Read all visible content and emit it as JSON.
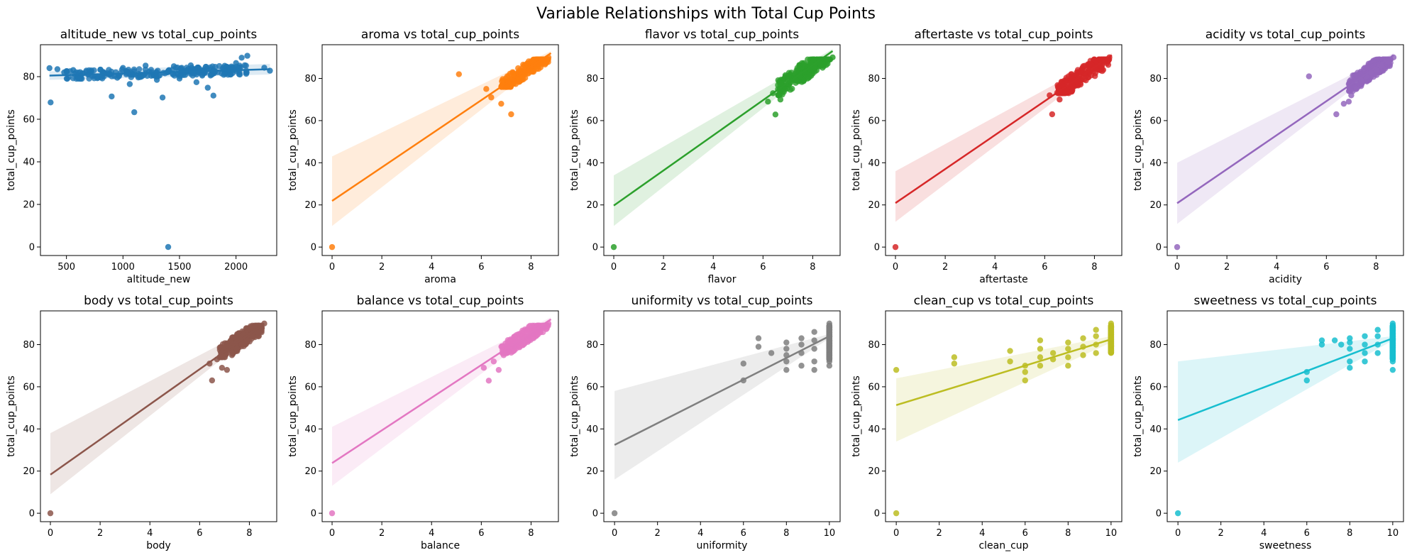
{
  "figure": {
    "title": "Variable Relationships with Total Cup Points"
  },
  "chart_data": [
    {
      "type": "scatter",
      "title": "altitude_new vs total_cup_points",
      "xlabel": "altitude_new",
      "ylabel": "total_cup_points",
      "xlim": [
        270,
        2360
      ],
      "ylim": [
        -4,
        95
      ],
      "xticks": [
        500,
        1000,
        1500,
        2000
      ],
      "yticks": [
        0,
        20,
        40,
        60,
        80
      ],
      "color": "#1f77b4",
      "points": [
        [
          350,
          84
        ],
        [
          360,
          67.9
        ],
        [
          420,
          83.5
        ],
        [
          480,
          82
        ],
        [
          560,
          83.1
        ],
        [
          640,
          81.5
        ],
        [
          720,
          82.4
        ],
        [
          800,
          83.3
        ],
        [
          880,
          81.2
        ],
        [
          900,
          70.7
        ],
        [
          950,
          79.5
        ],
        [
          1000,
          84.1
        ],
        [
          1060,
          76.5
        ],
        [
          1100,
          63.3
        ],
        [
          1150,
          79.8
        ],
        [
          1200,
          85.2
        ],
        [
          1250,
          80.4
        ],
        [
          1300,
          78.5
        ],
        [
          1350,
          70.2
        ],
        [
          1400,
          0
        ],
        [
          1400,
          82.6
        ],
        [
          1450,
          84.9
        ],
        [
          1500,
          79.1
        ],
        [
          1550,
          80.8
        ],
        [
          1600,
          85.3
        ],
        [
          1650,
          77.4
        ],
        [
          1700,
          83.1
        ],
        [
          1750,
          74.8
        ],
        [
          1800,
          71.1
        ],
        [
          1800,
          82.6
        ],
        [
          1900,
          85.1
        ],
        [
          1950,
          83.4
        ],
        [
          2000,
          86.4
        ],
        [
          2050,
          88.9
        ],
        [
          2100,
          89.8
        ],
        [
          2250,
          84.2
        ],
        [
          2300,
          82.8
        ]
      ],
      "cloud": {
        "x": [
          500,
          2100
        ],
        "y": [
          79,
          87
        ]
      },
      "fit": {
        "x": [
          350,
          2300
        ],
        "y": [
          80.5,
          83.5
        ],
        "ci_lo": [
          78.5,
          81
        ],
        "ci_hi": [
          82.5,
          86
        ]
      }
    },
    {
      "type": "scatter",
      "title": "aroma vs total_cup_points",
      "xlabel": "aroma",
      "ylabel": "total_cup_points",
      "xlim": [
        -0.4,
        9.1
      ],
      "ylim": [
        -4,
        96
      ],
      "xticks": [
        0,
        2,
        4,
        6,
        8
      ],
      "yticks": [
        0,
        20,
        40,
        60,
        80
      ],
      "color": "#ff7f0e",
      "points": [
        [
          0,
          0
        ],
        [
          5.1,
          82
        ],
        [
          6.2,
          75
        ],
        [
          6.4,
          71
        ],
        [
          6.8,
          68
        ],
        [
          7.2,
          63
        ],
        [
          7.0,
          76
        ],
        [
          7.3,
          79
        ],
        [
          7.5,
          82
        ],
        [
          7.7,
          83
        ],
        [
          7.9,
          84
        ],
        [
          8.1,
          86
        ],
        [
          8.3,
          87
        ],
        [
          8.5,
          88
        ],
        [
          8.7,
          90
        ]
      ],
      "cloud": {
        "x": [
          6.8,
          8.7
        ],
        "y": [
          76,
          89
        ]
      },
      "fit": {
        "x": [
          0,
          8.8
        ],
        "y": [
          21.9,
          92
        ],
        "ci_lo": [
          10,
          91
        ],
        "ci_hi": [
          43,
          93
        ]
      }
    },
    {
      "type": "scatter",
      "title": "flavor vs total_cup_points",
      "xlabel": "flavor",
      "ylabel": "total_cup_points",
      "xlim": [
        -0.4,
        9.1
      ],
      "ylim": [
        -4,
        96
      ],
      "xticks": [
        0,
        2,
        4,
        6,
        8
      ],
      "yticks": [
        0,
        20,
        40,
        60,
        80
      ],
      "color": "#2ca02c",
      "points": [
        [
          0,
          0
        ],
        [
          6.5,
          62.9
        ],
        [
          6.2,
          69
        ],
        [
          6.4,
          73
        ],
        [
          6.7,
          70
        ],
        [
          6.9,
          75
        ],
        [
          7.1,
          78
        ],
        [
          7.3,
          80
        ],
        [
          7.5,
          81
        ],
        [
          7.7,
          83
        ],
        [
          7.9,
          84
        ],
        [
          8.1,
          85
        ],
        [
          8.3,
          87
        ],
        [
          8.6,
          89
        ],
        [
          8.8,
          90
        ]
      ],
      "cloud": {
        "x": [
          6.6,
          8.7
        ],
        "y": [
          72,
          89
        ]
      },
      "fit": {
        "x": [
          0,
          8.8
        ],
        "y": [
          19.7,
          93
        ],
        "ci_lo": [
          10,
          92
        ],
        "ci_hi": [
          34,
          94
        ]
      }
    },
    {
      "type": "scatter",
      "title": "aftertaste vs total_cup_points",
      "xlabel": "aftertaste",
      "ylabel": "total_cup_points",
      "xlim": [
        -0.4,
        9.1
      ],
      "ylim": [
        -4,
        96
      ],
      "xticks": [
        0,
        2,
        4,
        6,
        8
      ],
      "yticks": [
        0,
        20,
        40,
        60,
        80
      ],
      "color": "#d62728",
      "points": [
        [
          0,
          0
        ],
        [
          6.3,
          63
        ],
        [
          6.2,
          72
        ],
        [
          6.6,
          70
        ],
        [
          6.8,
          73
        ],
        [
          7.0,
          76
        ],
        [
          7.2,
          79
        ],
        [
          7.4,
          81
        ],
        [
          7.6,
          82
        ],
        [
          7.8,
          84
        ],
        [
          8.0,
          85
        ],
        [
          8.2,
          86
        ],
        [
          8.4,
          88
        ],
        [
          8.6,
          90
        ]
      ],
      "cloud": {
        "x": [
          6.5,
          8.6
        ],
        "y": [
          73,
          89
        ]
      },
      "fit": {
        "x": [
          0,
          8.7
        ],
        "y": [
          20.9,
          91
        ],
        "ci_lo": [
          12,
          90
        ],
        "ci_hi": [
          36,
          92
        ]
      }
    },
    {
      "type": "scatter",
      "title": "acidity vs total_cup_points",
      "xlabel": "acidity",
      "ylabel": "total_cup_points",
      "xlim": [
        -0.4,
        9.1
      ],
      "ylim": [
        -4,
        96
      ],
      "xticks": [
        0,
        2,
        4,
        6,
        8
      ],
      "yticks": [
        0,
        20,
        40,
        60,
        80
      ],
      "color": "#9467bd",
      "points": [
        [
          0,
          0
        ],
        [
          5.3,
          81
        ],
        [
          6.4,
          63
        ],
        [
          6.7,
          68
        ],
        [
          6.9,
          69
        ],
        [
          7.0,
          72
        ],
        [
          7.2,
          75
        ],
        [
          7.4,
          79
        ],
        [
          7.6,
          81
        ],
        [
          7.8,
          83
        ],
        [
          8.0,
          84
        ],
        [
          8.2,
          86
        ],
        [
          8.5,
          88
        ],
        [
          8.7,
          90
        ]
      ],
      "cloud": {
        "x": [
          6.9,
          8.6
        ],
        "y": [
          74,
          89
        ]
      },
      "fit": {
        "x": [
          0,
          8.7
        ],
        "y": [
          20.8,
          91
        ],
        "ci_lo": [
          11,
          90
        ],
        "ci_hi": [
          40,
          92
        ]
      }
    },
    {
      "type": "scatter",
      "title": "body vs total_cup_points",
      "xlabel": "body",
      "ylabel": "total_cup_points",
      "xlim": [
        -0.4,
        9.1
      ],
      "ylim": [
        -4,
        96
      ],
      "xticks": [
        0,
        2,
        4,
        6,
        8
      ],
      "yticks": [
        0,
        20,
        40,
        60,
        80
      ],
      "color": "#8c564b",
      "points": [
        [
          0,
          0
        ],
        [
          6.5,
          63
        ],
        [
          6.4,
          71
        ],
        [
          6.7,
          73
        ],
        [
          6.9,
          69
        ],
        [
          7.1,
          68
        ],
        [
          7.3,
          75
        ],
        [
          7.5,
          78
        ],
        [
          7.7,
          80
        ],
        [
          7.9,
          82
        ],
        [
          8.1,
          84
        ],
        [
          8.3,
          86
        ],
        [
          8.5,
          88
        ],
        [
          8.6,
          90
        ]
      ],
      "cloud": {
        "x": [
          6.8,
          8.5
        ],
        "y": [
          74,
          89
        ]
      },
      "fit": {
        "x": [
          0,
          8.6
        ],
        "y": [
          18.3,
          90
        ],
        "ci_lo": [
          9,
          89
        ],
        "ci_hi": [
          38,
          91
        ]
      }
    },
    {
      "type": "scatter",
      "title": "balance vs total_cup_points",
      "xlabel": "balance",
      "ylabel": "total_cup_points",
      "xlim": [
        -0.4,
        9.1
      ],
      "ylim": [
        -4,
        96
      ],
      "xticks": [
        0,
        2,
        4,
        6,
        8
      ],
      "yticks": [
        0,
        20,
        40,
        60,
        80
      ],
      "color": "#e377c2",
      "points": [
        [
          0,
          0
        ],
        [
          6.1,
          69
        ],
        [
          6.3,
          62.9
        ],
        [
          6.5,
          72
        ],
        [
          6.7,
          68
        ],
        [
          6.9,
          75
        ],
        [
          7.1,
          77
        ],
        [
          7.3,
          79
        ],
        [
          7.5,
          81
        ],
        [
          7.7,
          82
        ],
        [
          7.9,
          84
        ],
        [
          8.1,
          85
        ],
        [
          8.3,
          87
        ],
        [
          8.5,
          88
        ],
        [
          8.7,
          90
        ]
      ],
      "cloud": {
        "x": [
          6.8,
          8.7
        ],
        "y": [
          76,
          89
        ]
      },
      "fit": {
        "x": [
          0,
          8.8
        ],
        "y": [
          23.8,
          92
        ],
        "ci_lo": [
          13,
          91
        ],
        "ci_hi": [
          41,
          93
        ]
      }
    },
    {
      "type": "scatter",
      "title": "uniformity vs total_cup_points",
      "xlabel": "uniformity",
      "ylabel": "total_cup_points",
      "xlim": [
        -0.5,
        10.5
      ],
      "ylim": [
        -4,
        96
      ],
      "xticks": [
        0,
        2,
        4,
        6,
        8,
        10
      ],
      "yticks": [
        0,
        20,
        40,
        60,
        80
      ],
      "color": "#7f7f7f",
      "points": [
        [
          0,
          0
        ],
        [
          6,
          63
        ],
        [
          6,
          71
        ],
        [
          6.7,
          83
        ],
        [
          6.7,
          79
        ],
        [
          7.3,
          76
        ],
        [
          8,
          68
        ],
        [
          8,
          72
        ],
        [
          8,
          75
        ],
        [
          8,
          78
        ],
        [
          8,
          81
        ],
        [
          8.7,
          70
        ],
        [
          8.7,
          76
        ],
        [
          8.7,
          80
        ],
        [
          8.7,
          83
        ],
        [
          9.3,
          68
        ],
        [
          9.3,
          72
        ],
        [
          9.3,
          78
        ],
        [
          9.3,
          82
        ],
        [
          9.3,
          86
        ],
        [
          10,
          70
        ],
        [
          10,
          72
        ],
        [
          10,
          75
        ],
        [
          10,
          78
        ],
        [
          10,
          81
        ],
        [
          10,
          84
        ],
        [
          10,
          87
        ],
        [
          10,
          90
        ]
      ],
      "cloud": {
        "x": [
          10,
          10
        ],
        "y": [
          73,
          89
        ]
      },
      "fit": {
        "x": [
          0,
          10
        ],
        "y": [
          32.4,
          84
        ],
        "ci_lo": [
          16,
          83
        ],
        "ci_hi": [
          58,
          85
        ]
      }
    },
    {
      "type": "scatter",
      "title": "clean_cup vs total_cup_points",
      "xlabel": "clean_cup",
      "ylabel": "total_cup_points",
      "xlim": [
        -0.5,
        10.5
      ],
      "ylim": [
        -4,
        96
      ],
      "xticks": [
        0,
        2,
        4,
        6,
        8,
        10
      ],
      "yticks": [
        0,
        20,
        40,
        60,
        80
      ],
      "color": "#bcbd22",
      "points": [
        [
          0,
          0
        ],
        [
          0,
          68
        ],
        [
          2.7,
          71
        ],
        [
          2.7,
          74
        ],
        [
          5.3,
          72
        ],
        [
          5.3,
          77
        ],
        [
          6,
          63
        ],
        [
          6,
          67
        ],
        [
          6,
          70
        ],
        [
          6.7,
          70
        ],
        [
          6.7,
          74
        ],
        [
          6.7,
          78
        ],
        [
          6.7,
          82
        ],
        [
          7.3,
          73
        ],
        [
          7.3,
          76
        ],
        [
          8,
          70
        ],
        [
          8,
          74
        ],
        [
          8,
          78
        ],
        [
          8,
          81
        ],
        [
          8.7,
          75
        ],
        [
          8.7,
          79
        ],
        [
          8.7,
          83
        ],
        [
          9.3,
          76
        ],
        [
          9.3,
          80
        ],
        [
          9.3,
          84
        ],
        [
          9.3,
          87
        ],
        [
          10,
          77
        ],
        [
          10,
          80
        ],
        [
          10,
          83
        ],
        [
          10,
          86
        ],
        [
          10,
          90
        ]
      ],
      "cloud": {
        "x": [
          10,
          10
        ],
        "y": [
          76,
          89
        ]
      },
      "fit": {
        "x": [
          0,
          10
        ],
        "y": [
          51.3,
          82.5
        ],
        "ci_lo": [
          34,
          81
        ],
        "ci_hi": [
          64,
          84
        ]
      }
    },
    {
      "type": "scatter",
      "title": "sweetness vs total_cup_points",
      "xlabel": "sweetness",
      "ylabel": "total_cup_points",
      "xlim": [
        -0.5,
        10.5
      ],
      "ylim": [
        -4,
        96
      ],
      "xticks": [
        0,
        2,
        4,
        6,
        8,
        10
      ],
      "yticks": [
        0,
        20,
        40,
        60,
        80
      ],
      "color": "#17becf",
      "points": [
        [
          0,
          0
        ],
        [
          6,
          63
        ],
        [
          6,
          67
        ],
        [
          6.7,
          80
        ],
        [
          6.7,
          82
        ],
        [
          7.3,
          82
        ],
        [
          7.6,
          80
        ],
        [
          8,
          69
        ],
        [
          8,
          72
        ],
        [
          8,
          78
        ],
        [
          8,
          81
        ],
        [
          8,
          83
        ],
        [
          8.7,
          72
        ],
        [
          8.7,
          76
        ],
        [
          8.7,
          80
        ],
        [
          8.7,
          84
        ],
        [
          9.3,
          76
        ],
        [
          9.3,
          80
        ],
        [
          9.3,
          84
        ],
        [
          9.3,
          87
        ],
        [
          10,
          68
        ],
        [
          10,
          72
        ],
        [
          10,
          76
        ],
        [
          10,
          80
        ],
        [
          10,
          84
        ],
        [
          10,
          88
        ],
        [
          10,
          90
        ]
      ],
      "cloud": {
        "x": [
          10,
          10
        ],
        "y": [
          73,
          89
        ]
      },
      "fit": {
        "x": [
          0,
          10
        ],
        "y": [
          44.2,
          83
        ],
        "ci_lo": [
          24,
          82
        ],
        "ci_hi": [
          72,
          84
        ]
      }
    }
  ]
}
